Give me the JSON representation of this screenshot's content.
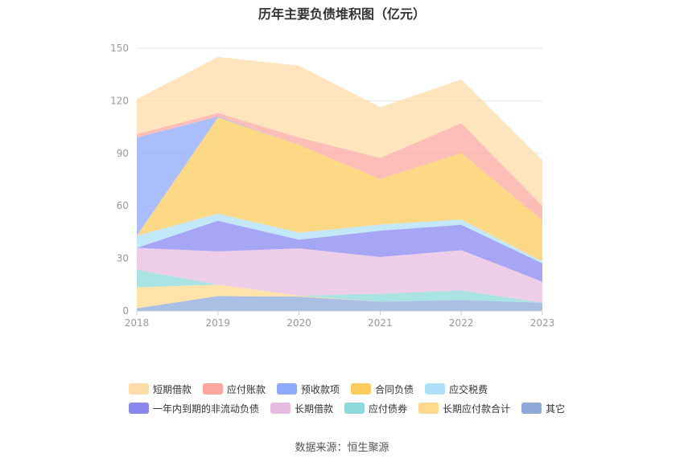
{
  "page": {
    "source": "数据来源：恒生聚源"
  },
  "chart_data": {
    "type": "area",
    "stacked": true,
    "title": "历年主要负债堆积图（亿元）",
    "xlabel": "",
    "ylabel": "",
    "x": [
      "2018",
      "2019",
      "2020",
      "2021",
      "2022",
      "2023"
    ],
    "ylim": [
      0,
      150
    ],
    "yticks": [
      0,
      30,
      60,
      90,
      120,
      150
    ],
    "grid": true,
    "legend_position": "bottom",
    "series": [
      {
        "name": "其它",
        "color": "#8eaadb",
        "values": [
          1.5,
          8.5,
          8.2,
          5.3,
          6.2,
          4.7
        ]
      },
      {
        "name": "长期应付款合计",
        "color": "#ffd98e",
        "values": [
          12,
          6.5,
          0.5,
          0,
          0,
          0
        ]
      },
      {
        "name": "应付债券",
        "color": "#8ed9d9",
        "values": [
          10,
          0,
          0,
          4.5,
          5.5,
          0
        ]
      },
      {
        "name": "长期借款",
        "color": "#e8bce0",
        "values": [
          12.5,
          19,
          27,
          21,
          23,
          12
        ]
      },
      {
        "name": "一年内到期的非流动负债",
        "color": "#8888f0",
        "values": [
          0,
          17.5,
          5,
          15,
          14.5,
          10.5
        ]
      },
      {
        "name": "应交税费",
        "color": "#aee0f8",
        "values": [
          7,
          4,
          4,
          3.5,
          3,
          1
        ]
      },
      {
        "name": "合同负债",
        "color": "#fccc5c",
        "values": [
          0,
          55,
          50,
          26,
          38,
          23.5
        ]
      },
      {
        "name": "预收款项",
        "color": "#8ea8fc",
        "values": [
          56,
          0.5,
          0,
          0,
          0,
          0
        ]
      },
      {
        "name": "应付账款",
        "color": "#fca8a0",
        "values": [
          2,
          2,
          4.3,
          12,
          17,
          8.3
        ]
      },
      {
        "name": "短期借款",
        "color": "#ffdca8",
        "values": [
          20,
          32,
          41,
          29,
          25,
          26
        ]
      }
    ],
    "legend_rows": [
      [
        "短期借款",
        "应付账款",
        "预收款项",
        "合同负债",
        "应交税费"
      ],
      [
        "一年内到期的非流动负债",
        "长期借款",
        "应付债券",
        "长期应付款合计",
        "其它"
      ]
    ]
  }
}
